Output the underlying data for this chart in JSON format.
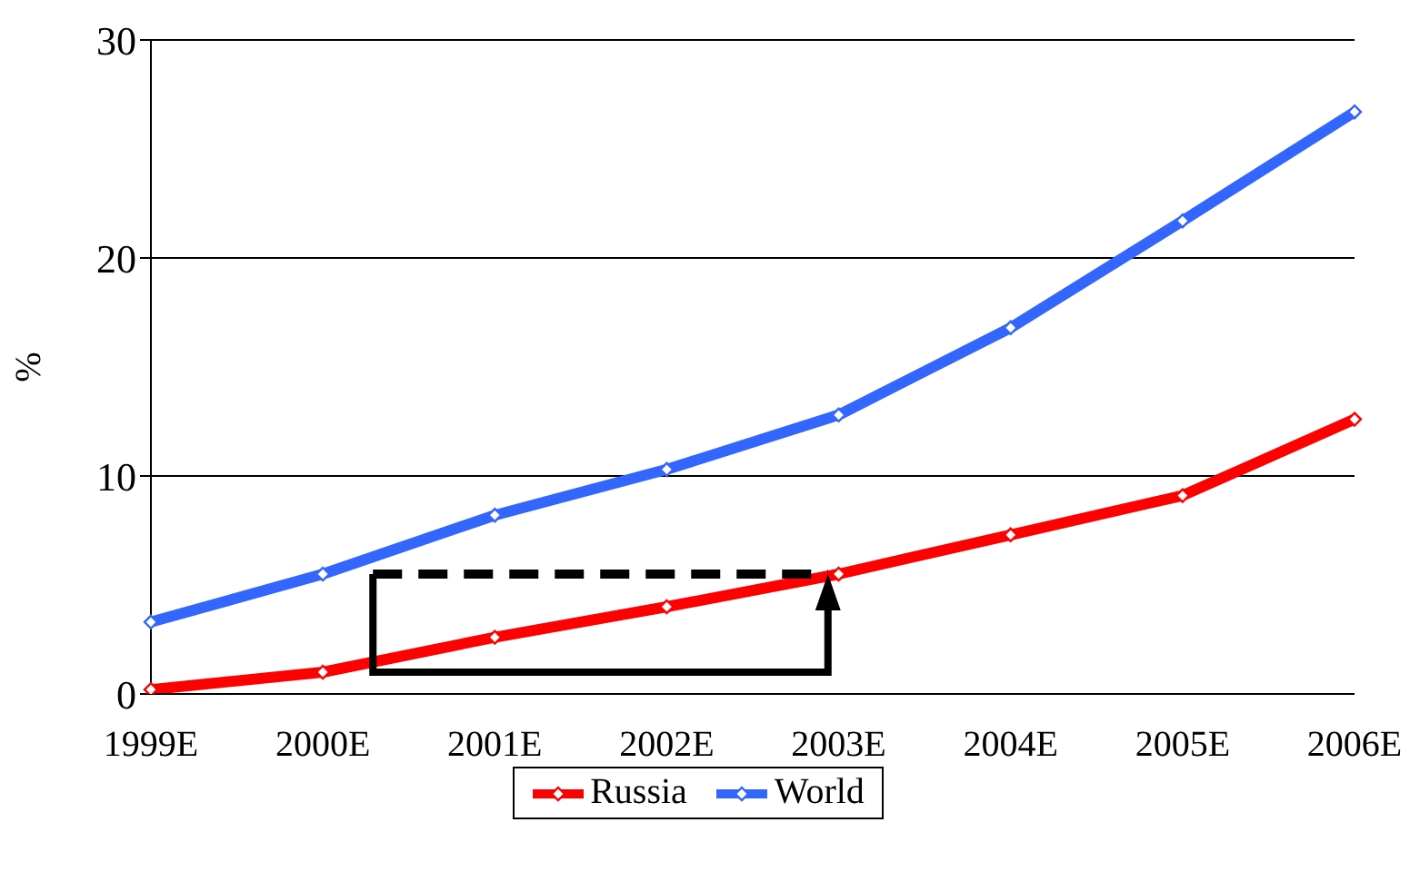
{
  "chart_data": {
    "type": "line",
    "ylabel": "%",
    "categories": [
      "1999E",
      "2000E",
      "2001E",
      "2002E",
      "2003E",
      "2004E",
      "2005E",
      "2006E"
    ],
    "series": [
      {
        "name": "Russia",
        "color": "#ff0000",
        "values": [
          0.2,
          1.0,
          2.6,
          4.0,
          5.5,
          7.3,
          9.1,
          12.6
        ]
      },
      {
        "name": "World",
        "color": "#3366ff",
        "values": [
          3.3,
          5.5,
          8.2,
          10.3,
          12.8,
          16.8,
          21.7,
          26.7
        ]
      }
    ],
    "ylim": [
      0,
      30
    ],
    "yticks": [
      0,
      10,
      20,
      30
    ],
    "grid": "y",
    "legend": "bottom",
    "marker": "diamond",
    "line_style": "solid"
  }
}
